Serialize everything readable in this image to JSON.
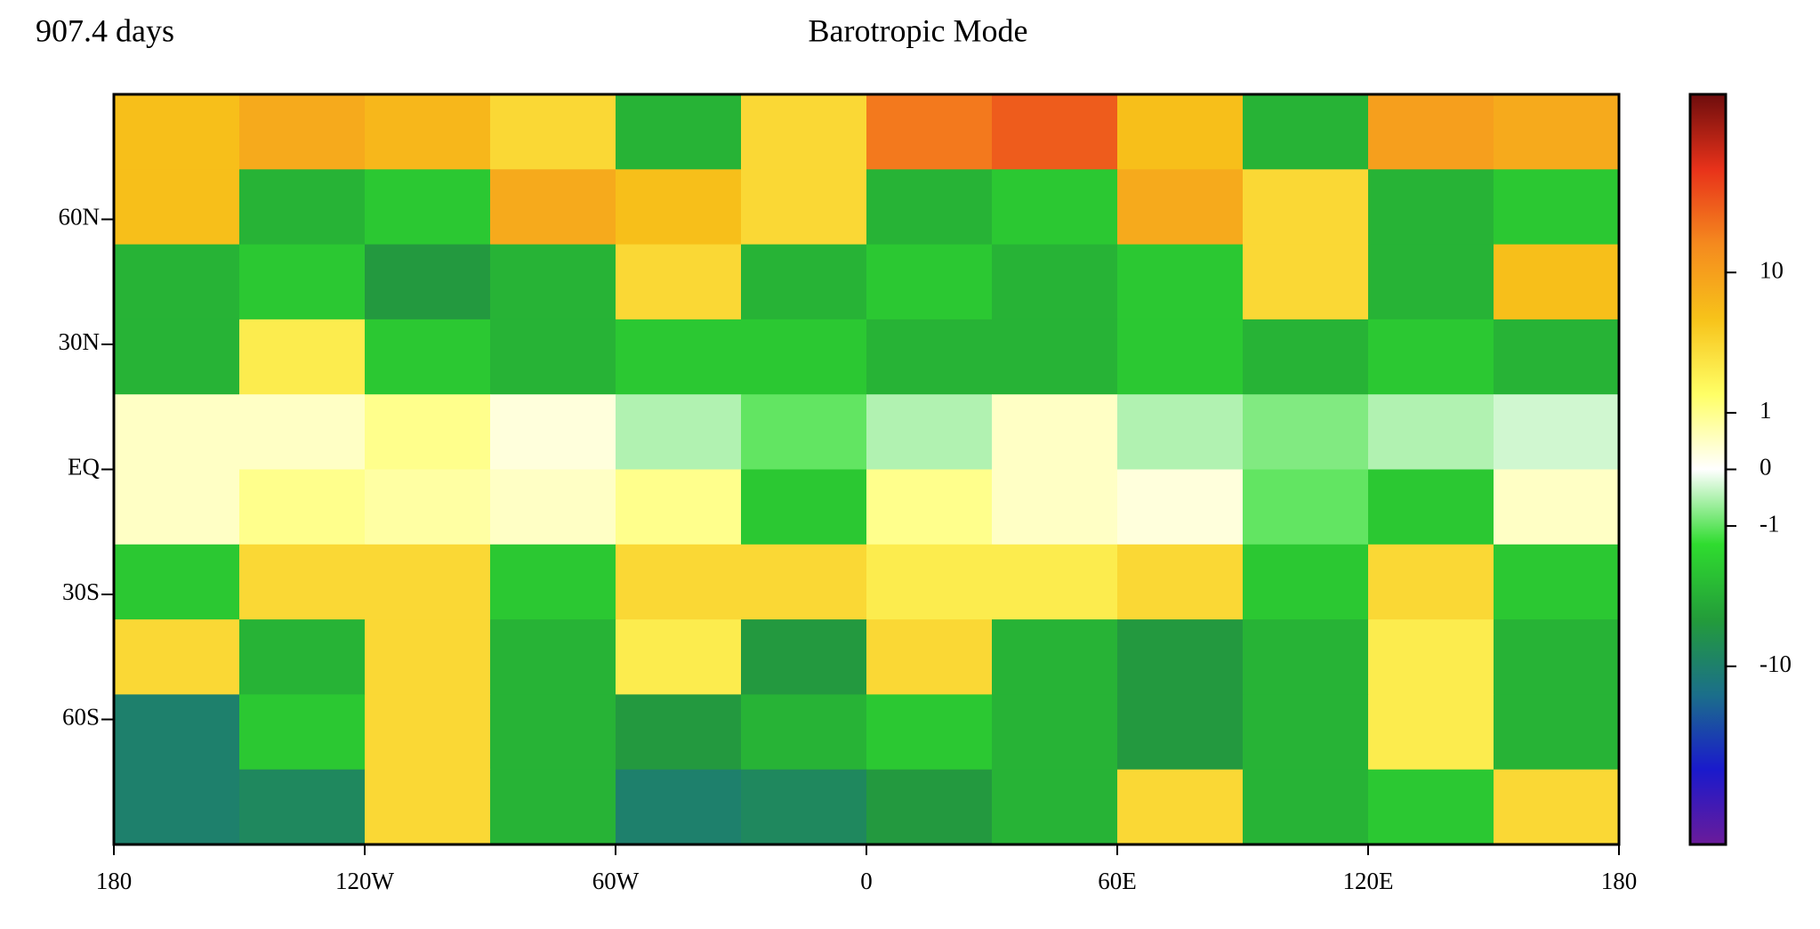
{
  "chart_data": {
    "type": "heatmap",
    "title": "Barotropic Mode",
    "annotation": "907.4 days",
    "xbins": [
      -180,
      -150,
      -120,
      -90,
      -60,
      -30,
      0,
      30,
      60,
      90,
      120,
      150,
      180
    ],
    "ybins": [
      90,
      72,
      54,
      36,
      18,
      0,
      -18,
      -36,
      -54,
      -72,
      -90
    ],
    "values": [
      [
        5,
        8,
        6,
        3,
        -3,
        3,
        20,
        30,
        5,
        -3,
        10,
        8
      ],
      [
        5,
        -3,
        -2,
        8,
        5,
        3,
        -3,
        -2,
        8,
        3,
        -3,
        -2
      ],
      [
        -3,
        -2,
        -5,
        -3,
        3,
        -3,
        -2,
        -3,
        -2,
        3,
        -3,
        5
      ],
      [
        -3,
        2,
        -2,
        -3,
        -2,
        -2,
        -3,
        -3,
        -2,
        -3,
        -2,
        -3
      ],
      [
        0.5,
        0.5,
        1,
        0.3,
        -0.5,
        -1,
        -0.5,
        0.5,
        -0.5,
        -0.8,
        -0.5,
        -0.3
      ],
      [
        0.5,
        1,
        0.8,
        0.5,
        1,
        -2,
        1,
        0.5,
        0.3,
        -1,
        -2,
        0.5
      ],
      [
        -2,
        3,
        3,
        -2,
        3,
        3,
        2,
        2,
        3,
        -2,
        3,
        -2
      ],
      [
        3,
        -3,
        3,
        -3,
        2,
        -5,
        3,
        -3,
        -5,
        -3,
        2,
        -3
      ],
      [
        -10,
        -2,
        3,
        -3,
        -5,
        -3,
        -2,
        -3,
        -5,
        -3,
        2,
        -3
      ],
      [
        -10,
        -8,
        3,
        -3,
        -10,
        -8,
        -5,
        -3,
        3,
        -3,
        -2,
        3
      ]
    ],
    "xlim": [
      -180,
      180
    ],
    "ylim": [
      -90,
      90
    ],
    "xticks": [
      {
        "value": -180,
        "label": "180"
      },
      {
        "value": -120,
        "label": "120W"
      },
      {
        "value": -60,
        "label": "60W"
      },
      0,
      {
        "value": 60,
        "label": "60E"
      },
      {
        "value": 120,
        "label": "120E"
      },
      {
        "value": 180,
        "label": "180"
      }
    ],
    "yticks": [
      {
        "value": 60,
        "label": "60N"
      },
      {
        "value": 30,
        "label": "30N"
      },
      {
        "value": 0,
        "label": "EQ"
      },
      {
        "value": -30,
        "label": "30S"
      },
      {
        "value": -60,
        "label": "60S"
      }
    ],
    "zscale": "symlog",
    "linthresh": 1,
    "zlim": [
      -186,
      186
    ],
    "zticks": [
      10,
      1,
      0,
      -1,
      -10
    ],
    "colormap": [
      "#6b1b9a",
      "#1a1acc",
      "#1b6f8a",
      "#239c3a",
      "#2fdc2f",
      "#ffffff",
      "#ffff66",
      "#f7c31a",
      "#f58a1e",
      "#e8321a",
      "#6e0d0d"
    ]
  }
}
